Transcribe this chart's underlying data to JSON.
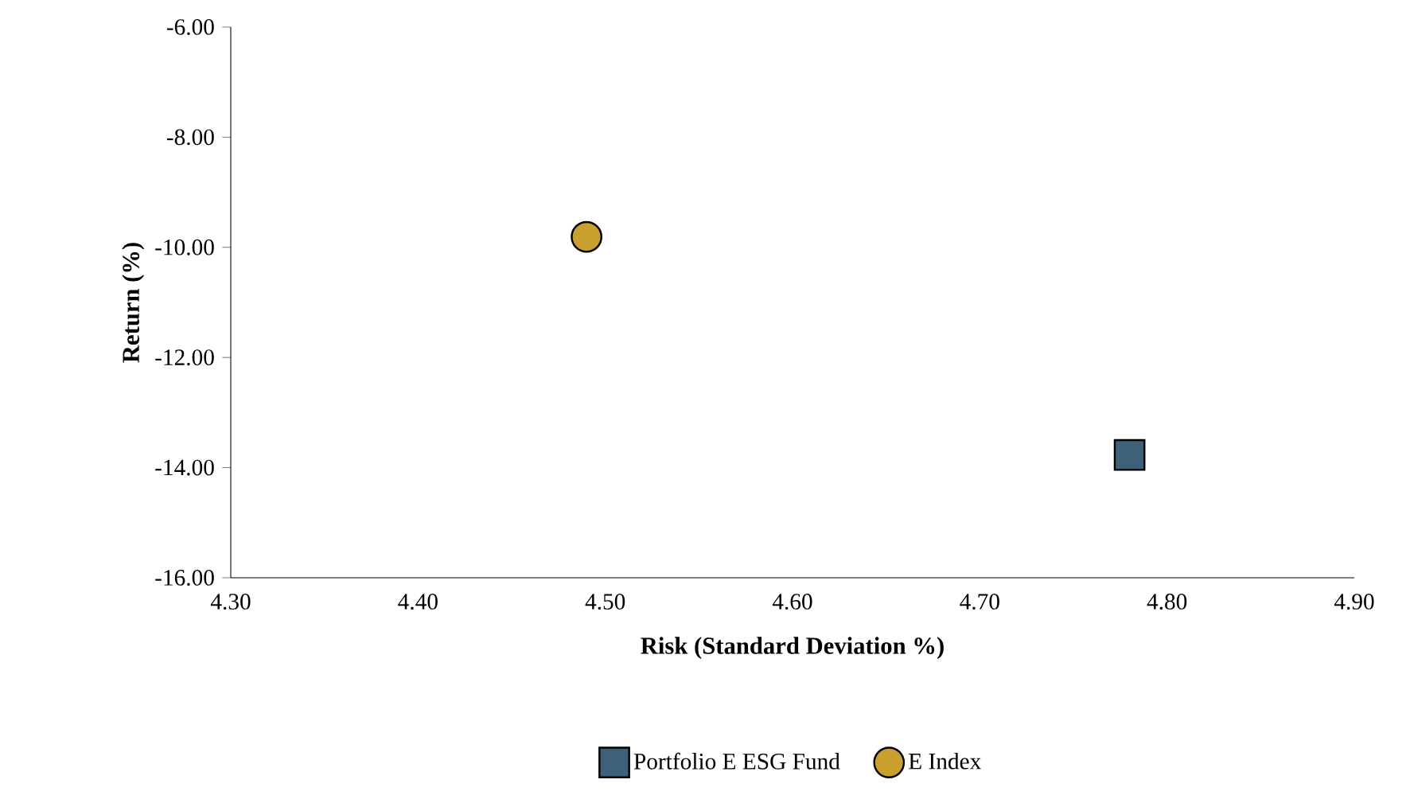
{
  "chart_data": {
    "type": "scatter",
    "xlabel": "Risk (Standard Deviation %)",
    "ylabel": "Return (%)",
    "xlim": [
      4.3,
      4.9
    ],
    "ylim": [
      -16,
      -6
    ],
    "xticks": [
      {
        "value": 4.3,
        "label": "4.30"
      },
      {
        "value": 4.4,
        "label": "4.40"
      },
      {
        "value": 4.5,
        "label": "4.50"
      },
      {
        "value": 4.6,
        "label": "4.60"
      },
      {
        "value": 4.7,
        "label": "4.70"
      },
      {
        "value": 4.8,
        "label": "4.80"
      },
      {
        "value": 4.9,
        "label": "4.90"
      }
    ],
    "yticks": [
      {
        "value": -16,
        "label": "-16.00"
      },
      {
        "value": -14,
        "label": "-14.00"
      },
      {
        "value": -12,
        "label": "-12.00"
      },
      {
        "value": -10,
        "label": "-10.00"
      },
      {
        "value": -8,
        "label": "-8.00"
      },
      {
        "value": -6,
        "label": "-6.00"
      }
    ],
    "grid": false,
    "legend": "bottom",
    "series": [
      {
        "name": "Portfolio E ESG Fund",
        "color": "#3f6079",
        "marker": "square",
        "x": [
          4.78
        ],
        "values": [
          -13.77
        ]
      },
      {
        "name": "E Index",
        "color": "#c99f2e",
        "marker": "circle",
        "x": [
          4.49
        ],
        "values": [
          -9.81
        ]
      }
    ]
  }
}
